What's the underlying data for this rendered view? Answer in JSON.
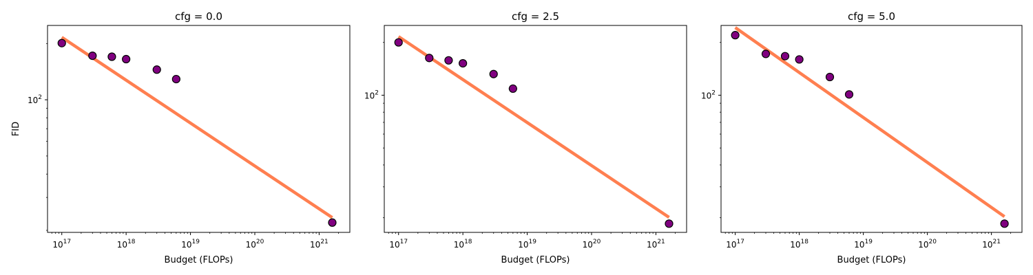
{
  "chart_data": [
    {
      "type": "scatter",
      "title": "cfg = 0.0",
      "xlabel": "Budget (FLOPs)",
      "ylabel": "FID",
      "xscale": "log",
      "yscale": "log",
      "xlim": [
        6e+16,
        3e+21
      ],
      "ylim": [
        19.5,
        250
      ],
      "x_ticks": [
        {
          "value": 1e+17,
          "base": "10",
          "exp": "17"
        },
        {
          "value": 1e+18,
          "base": "10",
          "exp": "18"
        },
        {
          "value": 1e+19,
          "base": "10",
          "exp": "19"
        },
        {
          "value": 1e+20,
          "base": "10",
          "exp": "20"
        },
        {
          "value": 1e+21,
          "base": "10",
          "exp": "21"
        }
      ],
      "y_ticks": [
        {
          "value": 100,
          "base": "10",
          "exp": "2"
        }
      ],
      "grid": false,
      "series": [
        {
          "kind": "scatter",
          "x": [
            1e+17,
            3e+17,
            6e+17,
            1e+18,
            3e+18,
            6e+18,
            1.6e+21
          ],
          "y": [
            201,
            172,
            170,
            165,
            145,
            129,
            22
          ],
          "color": "#800080",
          "edgecolor": "#000000"
        },
        {
          "kind": "fit-line",
          "x": [
            1e+17,
            1.6e+21
          ],
          "y": [
            216,
            23.4
          ],
          "color": "#ff7f50"
        }
      ]
    },
    {
      "type": "scatter",
      "title": "cfg = 2.5",
      "xlabel": "Budget (FLOPs)",
      "ylabel": "",
      "xscale": "log",
      "yscale": "log",
      "xlim": [
        6e+16,
        3e+21
      ],
      "ylim": [
        16.5,
        250
      ],
      "x_ticks": [
        {
          "value": 1e+17,
          "base": "10",
          "exp": "17"
        },
        {
          "value": 1e+18,
          "base": "10",
          "exp": "18"
        },
        {
          "value": 1e+19,
          "base": "10",
          "exp": "19"
        },
        {
          "value": 1e+20,
          "base": "10",
          "exp": "20"
        },
        {
          "value": 1e+21,
          "base": "10",
          "exp": "21"
        }
      ],
      "y_ticks": [
        {
          "value": 100,
          "base": "10",
          "exp": "2"
        }
      ],
      "grid": false,
      "series": [
        {
          "kind": "scatter",
          "x": [
            1e+17,
            3e+17,
            6e+17,
            1e+18,
            3e+18,
            6e+18,
            1.6e+21
          ],
          "y": [
            200,
            163,
            158,
            152,
            132,
            109,
            18.5
          ],
          "color": "#800080",
          "edgecolor": "#000000"
        },
        {
          "kind": "fit-line",
          "x": [
            1e+17,
            1.6e+21
          ],
          "y": [
            216,
            20.1
          ],
          "color": "#ff7f50"
        }
      ]
    },
    {
      "type": "scatter",
      "title": "cfg = 5.0",
      "xlabel": "Budget (FLOPs)",
      "ylabel": "",
      "xscale": "log",
      "yscale": "log",
      "xlim": [
        6e+16,
        3e+21
      ],
      "ylim": [
        16.5,
        250
      ],
      "x_ticks": [
        {
          "value": 1e+17,
          "base": "10",
          "exp": "17"
        },
        {
          "value": 1e+18,
          "base": "10",
          "exp": "18"
        },
        {
          "value": 1e+19,
          "base": "10",
          "exp": "19"
        },
        {
          "value": 1e+20,
          "base": "10",
          "exp": "20"
        },
        {
          "value": 1e+21,
          "base": "10",
          "exp": "21"
        }
      ],
      "y_ticks": [
        {
          "value": 100,
          "base": "10",
          "exp": "2"
        }
      ],
      "grid": false,
      "series": [
        {
          "kind": "scatter",
          "x": [
            1e+17,
            3e+17,
            6e+17,
            1e+18,
            3e+18,
            6e+18,
            1.6e+21
          ],
          "y": [
            220,
            172,
            167,
            160,
            127,
            101,
            18.5
          ],
          "color": "#800080",
          "edgecolor": "#000000"
        },
        {
          "kind": "fit-line",
          "x": [
            1e+17,
            1.6e+21
          ],
          "y": [
            243,
            20.3
          ],
          "color": "#ff7f50"
        }
      ]
    }
  ]
}
